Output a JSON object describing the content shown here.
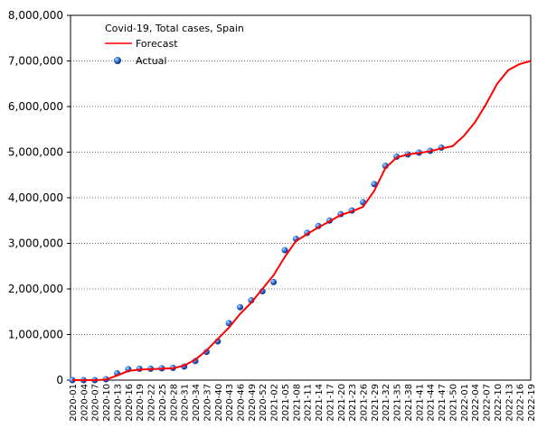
{
  "chart_data": {
    "type": "line",
    "legend_title": "Covid-19, Total cases, Spain",
    "categories": [
      "2020-01",
      "2020-04",
      "2020-07",
      "2020-10",
      "2020-13",
      "2020-16",
      "2020-19",
      "2020-22",
      "2020-25",
      "2020-28",
      "2020-31",
      "2020-34",
      "2020-37",
      "2020-40",
      "2020-43",
      "2020-46",
      "2020-49",
      "2020-52",
      "2021-02",
      "2021-05",
      "2021-08",
      "2021-11",
      "2021-14",
      "2021-17",
      "2021-20",
      "2021-23",
      "2021-26",
      "2021-29",
      "2021-32",
      "2021-35",
      "2021-38",
      "2021-41",
      "2021-44",
      "2021-47",
      "2021-50",
      "2022-01",
      "2022-04",
      "2022-07",
      "2022-10",
      "2022-13",
      "2022-16",
      "2022-19"
    ],
    "series": [
      {
        "name": "Forecast",
        "color": "#ff0000",
        "values": [
          0,
          0,
          0,
          10000,
          100000,
          200000,
          230000,
          240000,
          250000,
          260000,
          320000,
          450000,
          650000,
          900000,
          1150000,
          1450000,
          1700000,
          2000000,
          2300000,
          2700000,
          3050000,
          3200000,
          3350000,
          3480000,
          3620000,
          3700000,
          3800000,
          4150000,
          4650000,
          4880000,
          4950000,
          4980000,
          5020000,
          5080000,
          5130000,
          5350000,
          5650000,
          6050000,
          6500000,
          6800000,
          6930000,
          7000000
        ]
      },
      {
        "name": "Actual",
        "color": "#1f5fd0",
        "values": [
          0,
          0,
          0,
          20000,
          150000,
          240000,
          250000,
          250000,
          260000,
          270000,
          300000,
          420000,
          620000,
          850000,
          1250000,
          1600000,
          1750000,
          1950000,
          2150000,
          2850000,
          3100000,
          3230000,
          3380000,
          3500000,
          3640000,
          3720000,
          3900000,
          4300000,
          4700000,
          4900000,
          4950000,
          4990000,
          5030000,
          5100000,
          null,
          null,
          null,
          null,
          null,
          null,
          null,
          null
        ]
      }
    ],
    "ylim": [
      0,
      8000000
    ],
    "yticks": [
      {
        "value": 0,
        "label": "0"
      },
      {
        "value": 1000000,
        "label": "1,000,000"
      },
      {
        "value": 2000000,
        "label": "2,000,000"
      },
      {
        "value": 3000000,
        "label": "3,000,000"
      },
      {
        "value": 4000000,
        "label": "4,000,000"
      },
      {
        "value": 5000000,
        "label": "5,000,000"
      },
      {
        "value": 6000000,
        "label": "6,000,000"
      },
      {
        "value": 7000000,
        "label": "7,000,000"
      },
      {
        "value": 8000000,
        "label": "8,000,000"
      }
    ],
    "grid": true
  }
}
